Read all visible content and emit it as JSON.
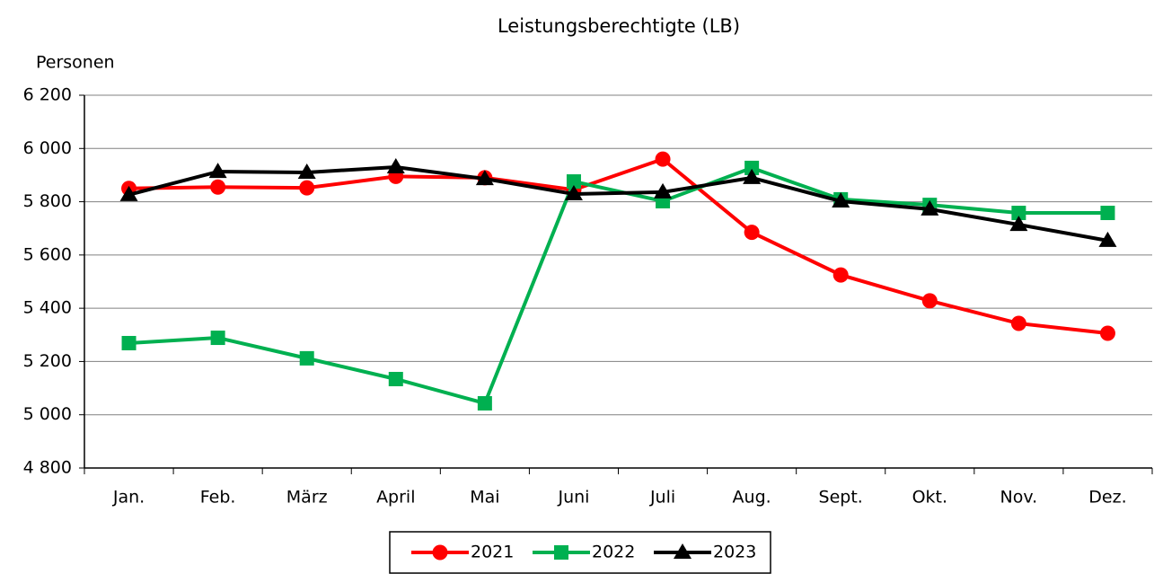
{
  "chart_data": {
    "type": "line",
    "title": "Leistungsberechtigte (LB)",
    "y_axis_label": "Personen",
    "categories": [
      "Jan.",
      "Feb.",
      "März",
      "April",
      "Mai",
      "Juni",
      "Juli",
      "Aug.",
      "Sept.",
      "Okt.",
      "Nov.",
      "Dez."
    ],
    "series": [
      {
        "name": "2021",
        "color": "#ff0000",
        "marker": "circle",
        "values": [
          5850,
          5855,
          5852,
          5895,
          5890,
          5845,
          5960,
          5685,
          5525,
          5428,
          5343,
          5306
        ]
      },
      {
        "name": "2022",
        "color": "#00b050",
        "marker": "square",
        "values": [
          5269,
          5289,
          5212,
          5134,
          5043,
          5876,
          5802,
          5927,
          5809,
          5788,
          5758,
          5758
        ]
      },
      {
        "name": "2023",
        "color": "#000000",
        "marker": "triangle",
        "values": [
          5826,
          5913,
          5910,
          5930,
          5886,
          5829,
          5836,
          5890,
          5802,
          5772,
          5714,
          5654
        ]
      }
    ],
    "ylim": [
      4800,
      6200
    ],
    "yticks": [
      {
        "value": 4800,
        "label": "4 800"
      },
      {
        "value": 5000,
        "label": "5 000"
      },
      {
        "value": 5200,
        "label": "5 200"
      },
      {
        "value": 5400,
        "label": "5 400"
      },
      {
        "value": 5600,
        "label": "5 600"
      },
      {
        "value": 5800,
        "label": "5 800"
      },
      {
        "value": 6000,
        "label": "6 000"
      },
      {
        "value": 6200,
        "label": "6 200"
      }
    ],
    "grid": true,
    "legend": "bottom"
  }
}
